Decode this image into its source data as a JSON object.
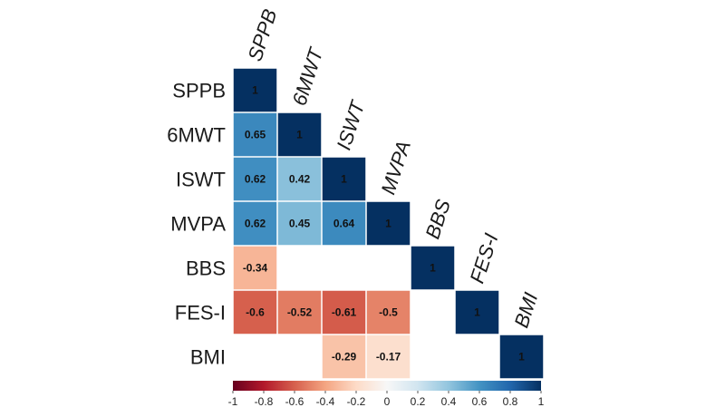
{
  "chart_data": {
    "type": "heatmap",
    "title": "",
    "variables": [
      "SPPB",
      "6MWT",
      "ISWT",
      "MVPA",
      "BBS",
      "FES-I",
      "BMI"
    ],
    "lower_triangle_only": true,
    "cells": [
      {
        "row": "SPPB",
        "col": "SPPB",
        "value": 1,
        "label": "1"
      },
      {
        "row": "6MWT",
        "col": "SPPB",
        "value": 0.65,
        "label": "0.65"
      },
      {
        "row": "6MWT",
        "col": "6MWT",
        "value": 1,
        "label": "1"
      },
      {
        "row": "ISWT",
        "col": "SPPB",
        "value": 0.62,
        "label": "0.62"
      },
      {
        "row": "ISWT",
        "col": "6MWT",
        "value": 0.42,
        "label": "0.42"
      },
      {
        "row": "ISWT",
        "col": "ISWT",
        "value": 1,
        "label": "1"
      },
      {
        "row": "MVPA",
        "col": "SPPB",
        "value": 0.62,
        "label": "0.62"
      },
      {
        "row": "MVPA",
        "col": "6MWT",
        "value": 0.45,
        "label": "0.45"
      },
      {
        "row": "MVPA",
        "col": "ISWT",
        "value": 0.64,
        "label": "0.64"
      },
      {
        "row": "MVPA",
        "col": "MVPA",
        "value": 1,
        "label": "1"
      },
      {
        "row": "BBS",
        "col": "SPPB",
        "value": -0.34,
        "label": "-0.34"
      },
      {
        "row": "BBS",
        "col": "BBS",
        "value": 1,
        "label": "1"
      },
      {
        "row": "FES-I",
        "col": "SPPB",
        "value": -0.6,
        "label": "-0.6"
      },
      {
        "row": "FES-I",
        "col": "6MWT",
        "value": -0.52,
        "label": "-0.52"
      },
      {
        "row": "FES-I",
        "col": "ISWT",
        "value": -0.61,
        "label": "-0.61"
      },
      {
        "row": "FES-I",
        "col": "MVPA",
        "value": -0.5,
        "label": "-0.5"
      },
      {
        "row": "FES-I",
        "col": "FES-I",
        "value": 1,
        "label": "1"
      },
      {
        "row": "BMI",
        "col": "ISWT",
        "value": -0.29,
        "label": "-0.29"
      },
      {
        "row": "BMI",
        "col": "MVPA",
        "value": -0.17,
        "label": "-0.17"
      },
      {
        "row": "BMI",
        "col": "BMI",
        "value": 1,
        "label": "1"
      }
    ],
    "colorbar": {
      "range": [
        -1,
        1
      ],
      "ticks": [
        "-1",
        "-0.8",
        "-0.6",
        "-0.4",
        "-0.2",
        "0",
        "0.2",
        "0.4",
        "0.6",
        "0.8",
        "1"
      ],
      "colors": [
        "#67001f",
        "#b2182b",
        "#d6604d",
        "#f4a582",
        "#fddbc7",
        "#f7f7f7",
        "#d1e5f0",
        "#92c5de",
        "#4393c3",
        "#2166ac",
        "#053061"
      ],
      "placement": "bottom"
    }
  }
}
